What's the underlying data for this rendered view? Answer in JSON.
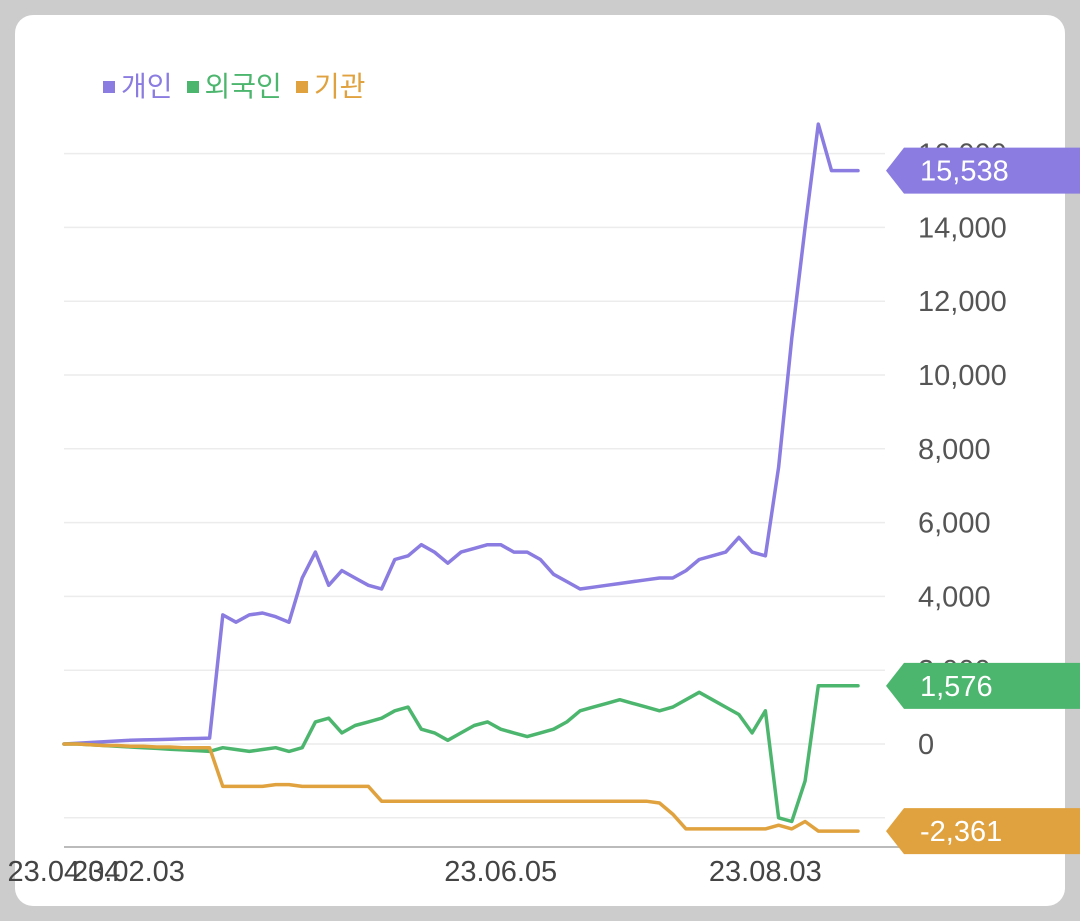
{
  "chart_data": {
    "type": "line",
    "legend": [
      {
        "name": "개인",
        "color": "#8A7CE0"
      },
      {
        "name": "외국인",
        "color": "#4DB66E"
      },
      {
        "name": "기관",
        "color": "#E0A23E"
      }
    ],
    "y_ticks": [
      "16,000",
      "14,000",
      "12,000",
      "10,000",
      "8,000",
      "6,000",
      "4,000",
      "2,000",
      "0"
    ],
    "ylim": [
      -2800,
      16800
    ],
    "x_ticks": [
      "23.02.03",
      "23.04.04",
      "23.06.05",
      "23.08.03"
    ],
    "x": [
      "23.02.03",
      "23.02.08",
      "23.02.13",
      "23.02.18",
      "23.02.23",
      "23.02.28",
      "23.03.05",
      "23.03.10",
      "23.03.15",
      "23.03.20",
      "23.03.25",
      "23.03.30",
      "23.04.02",
      "23.04.03",
      "23.04.05",
      "23.04.08",
      "23.04.12",
      "23.04.16",
      "23.04.20",
      "23.04.24",
      "23.04.27",
      "23.04.30",
      "23.05.03",
      "23.05.06",
      "23.05.09",
      "23.05.12",
      "23.05.15",
      "23.05.18",
      "23.05.21",
      "23.05.24",
      "23.05.27",
      "23.05.30",
      "23.06.02",
      "23.06.05",
      "23.06.08",
      "23.06.11",
      "23.06.14",
      "23.06.17",
      "23.06.20",
      "23.06.23",
      "23.06.26",
      "23.06.29",
      "23.07.02",
      "23.07.05",
      "23.07.08",
      "23.07.11",
      "23.07.14",
      "23.07.17",
      "23.07.20",
      "23.07.23",
      "23.07.26",
      "23.07.29",
      "23.08.01",
      "23.08.03",
      "23.08.05",
      "23.08.07",
      "23.08.08",
      "23.08.09",
      "23.08.10",
      "23.08.11",
      "23.08.12"
    ],
    "series": [
      {
        "name": "개인",
        "color": "#8A7CE0",
        "last_label": "15,538",
        "values": [
          0,
          20,
          40,
          60,
          80,
          100,
          110,
          120,
          130,
          140,
          150,
          160,
          3500,
          3300,
          3500,
          3550,
          3450,
          3300,
          4500,
          5200,
          4300,
          4700,
          4500,
          4300,
          4200,
          5000,
          5100,
          5400,
          5200,
          4900,
          5200,
          5300,
          5400,
          5400,
          5200,
          5200,
          5000,
          4600,
          4400,
          4200,
          4250,
          4300,
          4350,
          4400,
          4450,
          4500,
          4500,
          4700,
          5000,
          5100,
          5200,
          5600,
          5200,
          5100,
          7500,
          11000,
          14000,
          16800,
          15538,
          15538,
          15538
        ]
      },
      {
        "name": "외국인",
        "color": "#4DB66E",
        "last_label": "1,576",
        "values": [
          0,
          0,
          -20,
          -40,
          -60,
          -80,
          -100,
          -120,
          -140,
          -160,
          -180,
          -200,
          -100,
          -150,
          -200,
          -150,
          -100,
          -200,
          -100,
          600,
          700,
          300,
          500,
          600,
          700,
          900,
          1000,
          400,
          300,
          100,
          300,
          500,
          600,
          400,
          300,
          200,
          300,
          400,
          600,
          900,
          1000,
          1100,
          1200,
          1100,
          1000,
          900,
          1000,
          1200,
          1400,
          1200,
          1000,
          800,
          300,
          900,
          -2000,
          -2100,
          -1000,
          1576,
          1576,
          1576,
          1576
        ]
      },
      {
        "name": "기관",
        "color": "#E0A23E",
        "last_label": "-2,361",
        "values": [
          0,
          0,
          -20,
          -40,
          -40,
          -60,
          -60,
          -80,
          -80,
          -100,
          -100,
          -100,
          -1150,
          -1150,
          -1150,
          -1150,
          -1100,
          -1100,
          -1150,
          -1150,
          -1150,
          -1150,
          -1150,
          -1150,
          -1550,
          -1550,
          -1550,
          -1550,
          -1550,
          -1550,
          -1550,
          -1550,
          -1550,
          -1550,
          -1550,
          -1550,
          -1550,
          -1550,
          -1550,
          -1550,
          -1550,
          -1550,
          -1550,
          -1550,
          -1550,
          -1600,
          -1900,
          -2300,
          -2300,
          -2300,
          -2300,
          -2300,
          -2300,
          -2300,
          -2200,
          -2300,
          -2100,
          -2361,
          -2361,
          -2361,
          -2361
        ]
      }
    ]
  }
}
